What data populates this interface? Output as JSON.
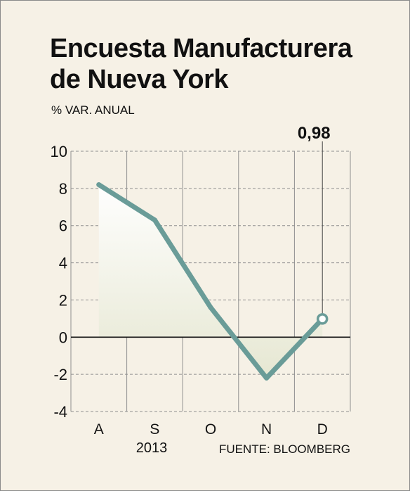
{
  "chart_data": {
    "type": "line",
    "title_lines": [
      "Encuesta Manufacturera",
      "de Nueva York"
    ],
    "subtitle": "% VAR. ANUAL",
    "categories": [
      "A",
      "S",
      "O",
      "N",
      "D"
    ],
    "x_sublabel": "2013",
    "values": [
      8.2,
      6.3,
      1.6,
      -2.2,
      0.98
    ],
    "ylim": [
      -4,
      10
    ],
    "yticks": [
      -4,
      -2,
      0,
      2,
      4,
      6,
      8,
      10
    ],
    "grid": true,
    "callout": {
      "category": "D",
      "value": 0.98,
      "label": "0,98"
    },
    "source": "FUENTE: BLOOMBERG",
    "colors": {
      "line": "#6a9c98",
      "marker_fill": "#ffffff",
      "background": "#f6f1e6",
      "area_top": "#ffffff",
      "area_bottom": "#e6e7d2",
      "grid": "#8f8f8f",
      "zero_line": "#111111"
    }
  }
}
